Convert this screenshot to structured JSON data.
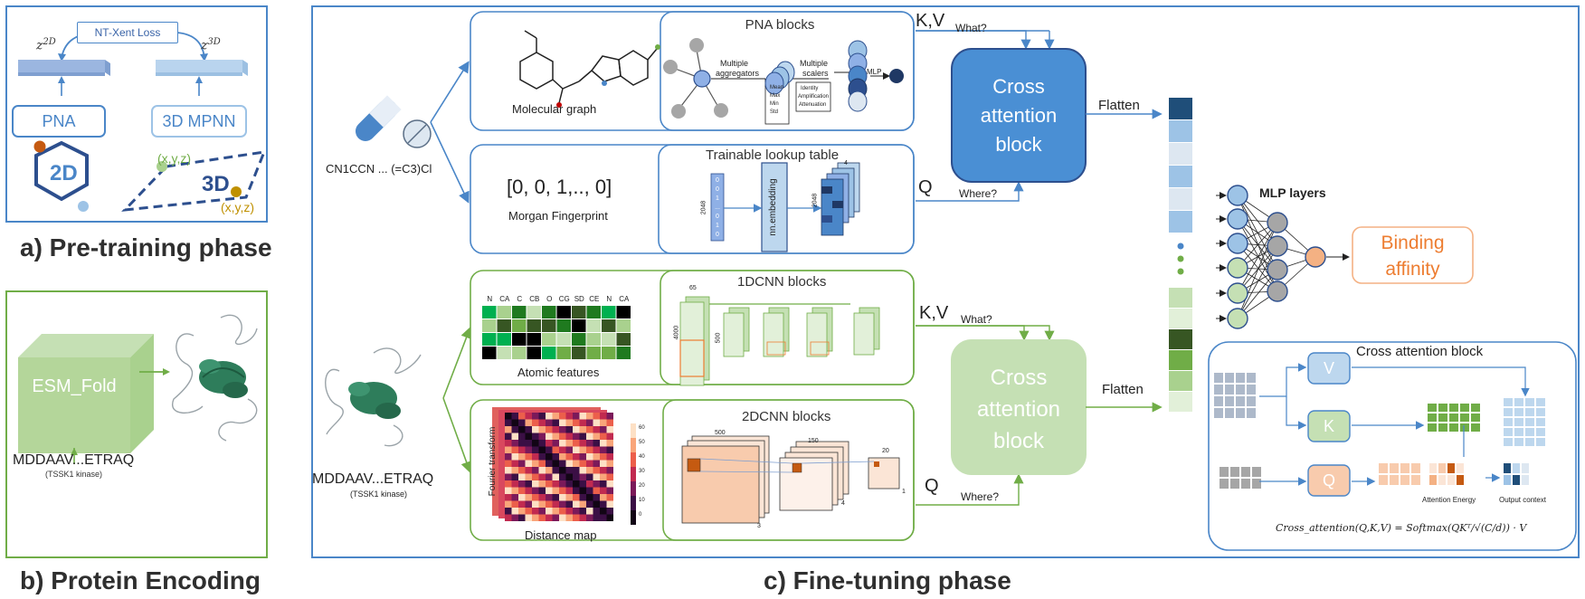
{
  "pretrain": {
    "loss": "NT-Xent Loss",
    "z2d": "z",
    "z2d_sup": "2D",
    "z3d": "z",
    "z3d_sup": "3D",
    "pna": "PNA",
    "mpnn": "3D MPNN",
    "label_2d": "2D",
    "label_3d": "3D",
    "xyz": "(x,y,z)",
    "caption": "a) Pre-training phase"
  },
  "protein": {
    "esm": "ESM_Fold",
    "seq": "MDDAAV...ETRAQ",
    "kinase": "(TSSK1 kinase)",
    "caption": "b) Protein Encoding"
  },
  "finetune": {
    "caption": "c) Fine-tuning phase",
    "smiles": "CN1CCN ... (=C3)Cl",
    "mol_graph": "Molecular graph",
    "pna_blocks": "PNA blocks",
    "multiple_aggregators": [
      "Multiple",
      "aggregators"
    ],
    "aggregators_list": [
      "Mean",
      "Max",
      "Min",
      "Std"
    ],
    "multiple_scalers": [
      "Multiple",
      "scalers"
    ],
    "scalers_list": [
      "Identity",
      "Amplification",
      "Attenuation"
    ],
    "mlp": "MLP",
    "fingerprint": "[0, 0, 1,.., 0]",
    "morgan": "Morgan Fingerprint",
    "lookup": "Trainable lookup table",
    "fp_vector": [
      "1",
      "0",
      "0",
      "1",
      "...",
      "0",
      "1",
      "0"
    ],
    "dim_2048": "2048",
    "nn_embedding": "nn.embedding",
    "dim_4": "4",
    "kv": "K,V",
    "q": "Q",
    "what": "What?",
    "where": "Where?",
    "cross_attention": [
      "Cross",
      "attention",
      "block"
    ],
    "flatten": "Flatten",
    "atomic_header": [
      "N",
      "CA",
      "C",
      "CB",
      "O",
      "CG",
      "SD",
      "CE",
      "N",
      "CA"
    ],
    "atomic_features": "Atomic features",
    "cnn1d": "1DCNN blocks",
    "cnn1d_dims": [
      "65",
      "4000",
      "500"
    ],
    "fourier": "Fourier transform",
    "distance_map": "Distance map",
    "colorbar_ticks": [
      "60",
      "50",
      "40",
      "30",
      "20",
      "10",
      "0"
    ],
    "cnn2d": "2DCNN blocks",
    "cnn2d_dims": [
      "500",
      "150",
      "20",
      "3",
      "4",
      "1"
    ],
    "protein_seq": "MDDAAV...ETRAQ",
    "protein_kinase": "(TSSK1 kinase)",
    "mlp_layers": "MLP layers",
    "binding": [
      "Binding",
      "affinity"
    ],
    "cab_title": "Cross attention block",
    "v": "V",
    "k": "K",
    "attention_energy": "Attention Energy",
    "output_context": "Output context",
    "formula": "Cross_attention(Q,K,V) = Softmax(QKᵀ/√(C/d)) · V"
  },
  "colors": {
    "blue_frame": "#4a86c8",
    "green_frame": "#70ad47",
    "cross_blue": "#4a8fd4",
    "cross_green": "#c5e0b4",
    "binding_orange": "#ed7d31"
  }
}
